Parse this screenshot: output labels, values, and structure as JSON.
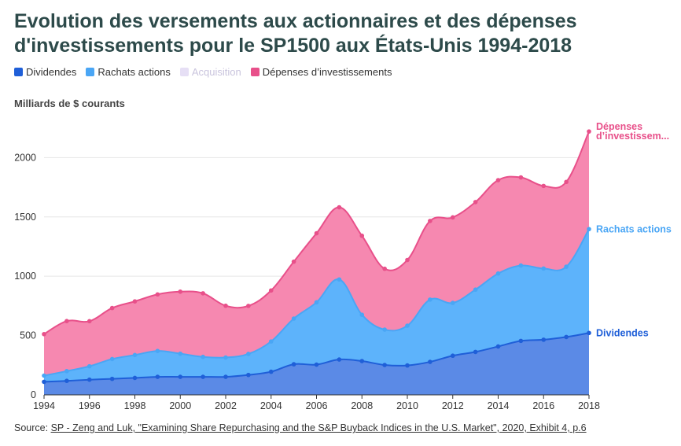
{
  "title": "Evolution des versements aux actionnaires et des dépenses d'investissements pour le SP1500 aux États-Unis 1994-2018",
  "legend": [
    {
      "label": "Dividendes",
      "color": "#1f5fd8",
      "faded": false
    },
    {
      "label": "Rachats actions",
      "color": "#4aa6f5",
      "faded": false
    },
    {
      "label": "Acquisition",
      "color": "#e6dff5",
      "faded": true
    },
    {
      "label": "Dépenses d’investissements",
      "color": "#e8508a",
      "faded": false
    }
  ],
  "y_caption": "Milliards de $ courants",
  "source": {
    "prefix": "Source: ",
    "link_text": "SP - Zeng and Luk, \"Examining Share Repurchasing and the S&P Buyback Indices in the U.S. Market\", 2020, Exhibit 4, p.6"
  },
  "chart_data": {
    "type": "area",
    "stacked": true,
    "x": [
      1994,
      1995,
      1996,
      1997,
      1998,
      1999,
      2000,
      2001,
      2002,
      2003,
      2004,
      2005,
      2006,
      2007,
      2008,
      2009,
      2010,
      2011,
      2012,
      2013,
      2014,
      2015,
      2016,
      2017,
      2018
    ],
    "series": [
      {
        "name": "Dividendes",
        "color": "#1f5fd8",
        "fill": "#5b8ae6",
        "end_label": "Dividendes",
        "values": [
          110,
          118,
          128,
          135,
          143,
          152,
          152,
          152,
          152,
          168,
          195,
          258,
          255,
          298,
          285,
          252,
          248,
          278,
          330,
          362,
          408,
          455,
          465,
          488,
          522
        ]
      },
      {
        "name": "Rachats actions",
        "color": "#4aa6f5",
        "fill": "#5db3fb",
        "end_label": "Rachats actions",
        "values": [
          52,
          82,
          113,
          167,
          193,
          218,
          195,
          168,
          163,
          177,
          255,
          385,
          525,
          675,
          390,
          298,
          335,
          525,
          445,
          525,
          615,
          635,
          600,
          592,
          875
        ]
      },
      {
        "name": "Dépenses d’investissements",
        "color": "#e8508a",
        "fill": "#f688b0",
        "end_label": "Dépenses d’investissem...",
        "values": [
          350,
          422,
          380,
          430,
          452,
          477,
          523,
          536,
          436,
          405,
          430,
          480,
          582,
          608,
          666,
          513,
          554,
          663,
          721,
          738,
          787,
          743,
          696,
          715,
          823
        ]
      }
    ],
    "x_ticks": [
      1994,
      1996,
      1998,
      2000,
      2002,
      2004,
      2006,
      2008,
      2010,
      2012,
      2014,
      2016,
      2018
    ],
    "y_ticks": [
      0,
      500,
      1000,
      1500,
      2000
    ],
    "xlim": [
      1994,
      2018
    ],
    "ylim": [
      0,
      2400
    ],
    "grid": true,
    "legend_position": "top-left"
  }
}
